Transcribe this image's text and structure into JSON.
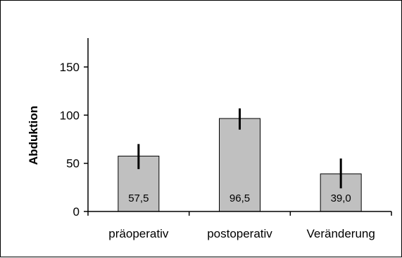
{
  "chart_data": {
    "type": "bar",
    "categories": [
      "präoperativ",
      "postoperativ",
      "Veränderung"
    ],
    "values": [
      57.5,
      96.5,
      39.0
    ],
    "data_labels": [
      "57,5",
      "96,5",
      "39,0"
    ],
    "error_low": [
      44,
      85,
      24
    ],
    "error_high": [
      70,
      107,
      55
    ],
    "ylabel": "Abduktion",
    "xlabel": "",
    "title": "",
    "ylim": [
      0,
      180
    ],
    "yticks": [
      0,
      50,
      100,
      150
    ],
    "ytick_labels": [
      "0",
      "50",
      "100",
      "150"
    ],
    "grid": false,
    "legend": "none",
    "bar_color": "#c0c0c0",
    "bar_edge_color": "#000000",
    "error_bar_color": "#000000"
  }
}
